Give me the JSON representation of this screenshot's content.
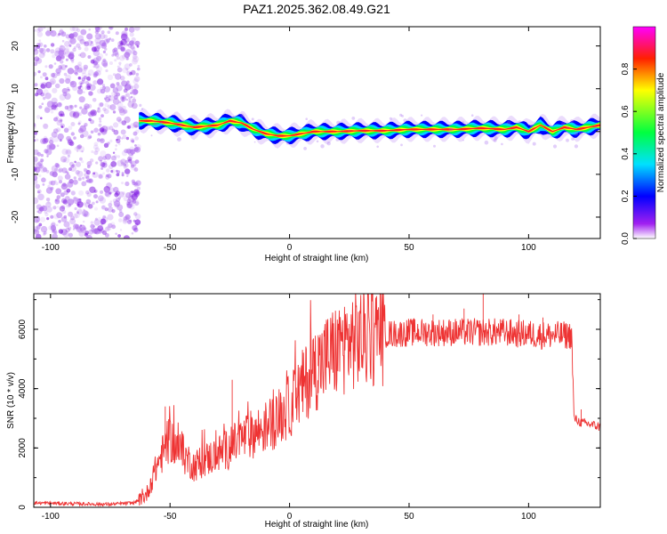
{
  "title": "PAZ1.2025.362.08.49.G21",
  "chart_data": [
    {
      "type": "heatmap",
      "title": "PAZ1.2025.362.08.49.G21",
      "xlabel": "Height of straight line (km)",
      "ylabel": "Frequency (Hz)",
      "xlim": [
        -107,
        130
      ],
      "ylim": [
        -25,
        24.5
      ],
      "xticks": [
        -100,
        -50,
        0,
        50,
        100
      ],
      "yticks": [
        -20,
        -10,
        0,
        10,
        20
      ],
      "ridge_frequency": {
        "x": [
          -63,
          -58,
          -50,
          -40,
          -30,
          -25,
          -20,
          -15,
          -10,
          -5,
          0,
          5,
          10,
          20,
          30,
          40,
          50,
          60,
          70,
          80,
          90,
          95,
          100,
          105,
          110,
          115,
          120,
          125,
          130
        ],
        "y": [
          2.5,
          2.5,
          2,
          1,
          1.5,
          2.5,
          2,
          0.5,
          -0.5,
          -1,
          -1,
          -0.5,
          0,
          0,
          0.2,
          0.2,
          0.5,
          0.5,
          0.5,
          0.8,
          0.5,
          1,
          0,
          1.5,
          0,
          1,
          0.5,
          1,
          1.5
        ]
      },
      "noise_region_x": [
        -107,
        -63
      ],
      "colorbar": {
        "label": "Normalized spectral amplitude",
        "range": [
          0,
          1
        ],
        "ticks": [
          "0.0",
          "0.2",
          "0.4",
          "0.6",
          "0.8"
        ],
        "colors": [
          "#ffffff",
          "#a020f0",
          "#0000ff",
          "#00e0ff",
          "#00ff40",
          "#ffff00",
          "#ff2000",
          "#ff00ff"
        ]
      }
    },
    {
      "type": "line",
      "xlabel": "Height of straight line (km)",
      "ylabel": "SNR (10 * v/v)",
      "xlim": [
        -107,
        130
      ],
      "ylim": [
        0,
        7200
      ],
      "xticks": [
        -100,
        -50,
        0,
        50,
        100
      ],
      "yticks": [
        0,
        2000,
        4000,
        6000
      ],
      "series": [
        {
          "name": "SNR",
          "color": "#ee3333",
          "x": [
            -107,
            -90,
            -75,
            -65,
            -60,
            -55,
            -50,
            -45,
            -40,
            -35,
            -30,
            -25,
            -20,
            -15,
            -10,
            -5,
            0,
            5,
            10,
            15,
            20,
            25,
            30,
            35,
            40,
            45,
            50,
            55,
            60,
            65,
            70,
            75,
            80,
            85,
            90,
            95,
            100,
            105,
            110,
            115,
            118,
            119,
            122,
            126,
            130
          ],
          "y": [
            150,
            120,
            100,
            150,
            400,
            1500,
            2300,
            1800,
            1400,
            1600,
            1800,
            2000,
            2300,
            2500,
            2700,
            3000,
            3400,
            4000,
            4600,
            5000,
            5300,
            5600,
            5700,
            5800,
            5850,
            5850,
            5900,
            5900,
            5900,
            5900,
            5900,
            5900,
            5900,
            5900,
            5900,
            5850,
            5850,
            5800,
            5800,
            5800,
            5800,
            3000,
            2850,
            2800,
            2700
          ]
        }
      ],
      "peak_points": [
        {
          "x": -52,
          "y": 3400
        },
        {
          "x": -24,
          "y": 4300
        },
        {
          "x": 12,
          "y": 5800
        },
        {
          "x": 50,
          "y": 6300
        },
        {
          "x": 60,
          "y": 6500
        },
        {
          "x": 73,
          "y": 6700
        },
        {
          "x": 81,
          "y": 7200
        },
        {
          "x": 96,
          "y": 6500
        },
        {
          "x": 106,
          "y": 6400
        },
        {
          "x": 122,
          "y": 3300
        }
      ]
    }
  ]
}
